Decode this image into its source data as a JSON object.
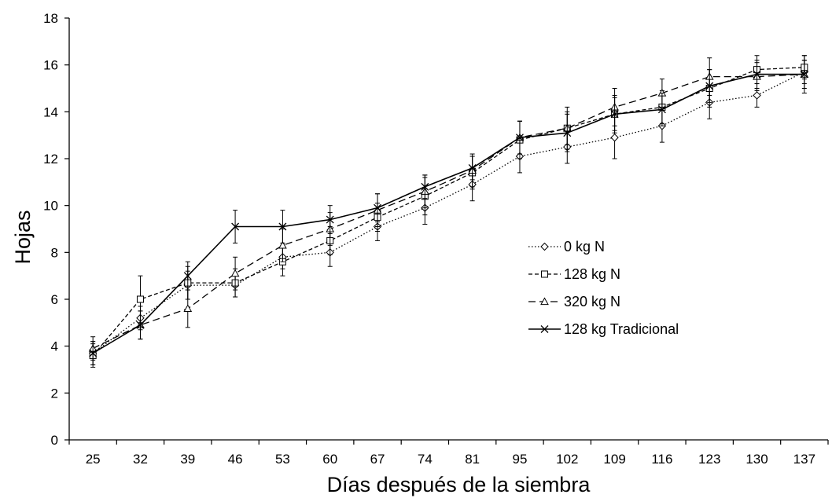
{
  "chart_data": {
    "type": "line",
    "title": "",
    "xlabel": "Días después de la siembra",
    "ylabel": "Hojas",
    "ylim": [
      0,
      18
    ],
    "yticks": [
      "0",
      "2",
      "4",
      "6",
      "8",
      "10",
      "12",
      "14",
      "16",
      "18"
    ],
    "categories": [
      "25",
      "32",
      "39",
      "46",
      "53",
      "60",
      "67",
      "74",
      "81",
      "95",
      "102",
      "109",
      "116",
      "123",
      "130",
      "137"
    ],
    "grid": false,
    "legend_position": "right-center",
    "series": [
      {
        "name": "0 kg N",
        "marker": "diamond",
        "dash": "dotted",
        "values": [
          3.7,
          5.2,
          6.6,
          6.6,
          7.8,
          8.0,
          9.1,
          9.9,
          10.9,
          12.1,
          12.5,
          12.9,
          13.4,
          14.4,
          14.7,
          15.7
        ],
        "errors": [
          0.5,
          0.5,
          0.6,
          0.5,
          0.5,
          0.6,
          0.6,
          0.7,
          0.7,
          0.7,
          0.7,
          0.9,
          0.7,
          0.7,
          0.5,
          0.5
        ]
      },
      {
        "name": "128 kg N",
        "marker": "square",
        "dash": "short-dash",
        "values": [
          3.6,
          6.0,
          6.7,
          6.7,
          7.6,
          8.5,
          9.5,
          10.4,
          11.4,
          12.8,
          13.3,
          13.9,
          14.2,
          15.0,
          15.8,
          15.9
        ],
        "errors": [
          0.5,
          1.0,
          0.7,
          0.6,
          0.6,
          0.6,
          0.6,
          0.8,
          0.7,
          0.8,
          0.9,
          0.7,
          0.7,
          0.8,
          0.6,
          0.5
        ]
      },
      {
        "name": "320 kg N",
        "marker": "triangle",
        "dash": "long-dash",
        "values": [
          3.9,
          4.9,
          5.6,
          7.1,
          8.3,
          9.0,
          9.8,
          10.6,
          11.5,
          12.9,
          13.3,
          14.2,
          14.8,
          15.5,
          15.5,
          15.6
        ],
        "errors": [
          0.5,
          0.6,
          0.8,
          0.7,
          0.7,
          0.7,
          0.7,
          0.7,
          0.7,
          0.7,
          0.7,
          0.8,
          0.6,
          0.8,
          0.6,
          0.8
        ]
      },
      {
        "name": "128 kg Tradicional",
        "marker": "x",
        "dash": "solid",
        "values": [
          3.7,
          4.9,
          7.0,
          9.1,
          9.1,
          9.4,
          9.9,
          10.8,
          11.6,
          12.9,
          13.1,
          13.9,
          14.1,
          15.1,
          15.6,
          15.6
        ],
        "errors": [
          0.5,
          0.6,
          0.6,
          0.7,
          0.7,
          0.6,
          0.6,
          0.5,
          0.5,
          0.7,
          0.8,
          0.8,
          0.7,
          0.7,
          0.6,
          0.6
        ]
      }
    ]
  }
}
